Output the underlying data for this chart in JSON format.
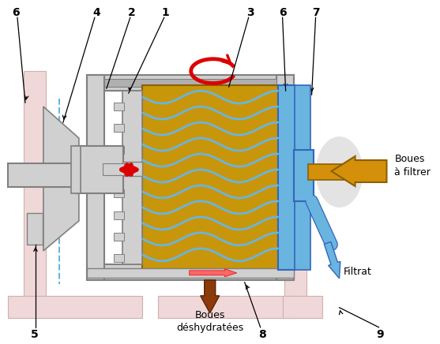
{
  "bg_color": "#ffffff",
  "gold_color": "#c8960a",
  "light_blue": "#6ab4e0",
  "blue_dark": "#3366bb",
  "red_color": "#dd0000",
  "gray_light": "#d0d0d0",
  "gray_med": "#b0b0b0",
  "gray_dark": "#808080",
  "pink_color": "#f0d8d8",
  "brown_color": "#8b3a0a",
  "gold_arrow": "#d4900a",
  "white": "#ffffff",
  "boues_filtrer": "Boues\nà filtrer",
  "filtrat": "Filtrat",
  "boues_deshy": "Boues\ndéshydratées"
}
